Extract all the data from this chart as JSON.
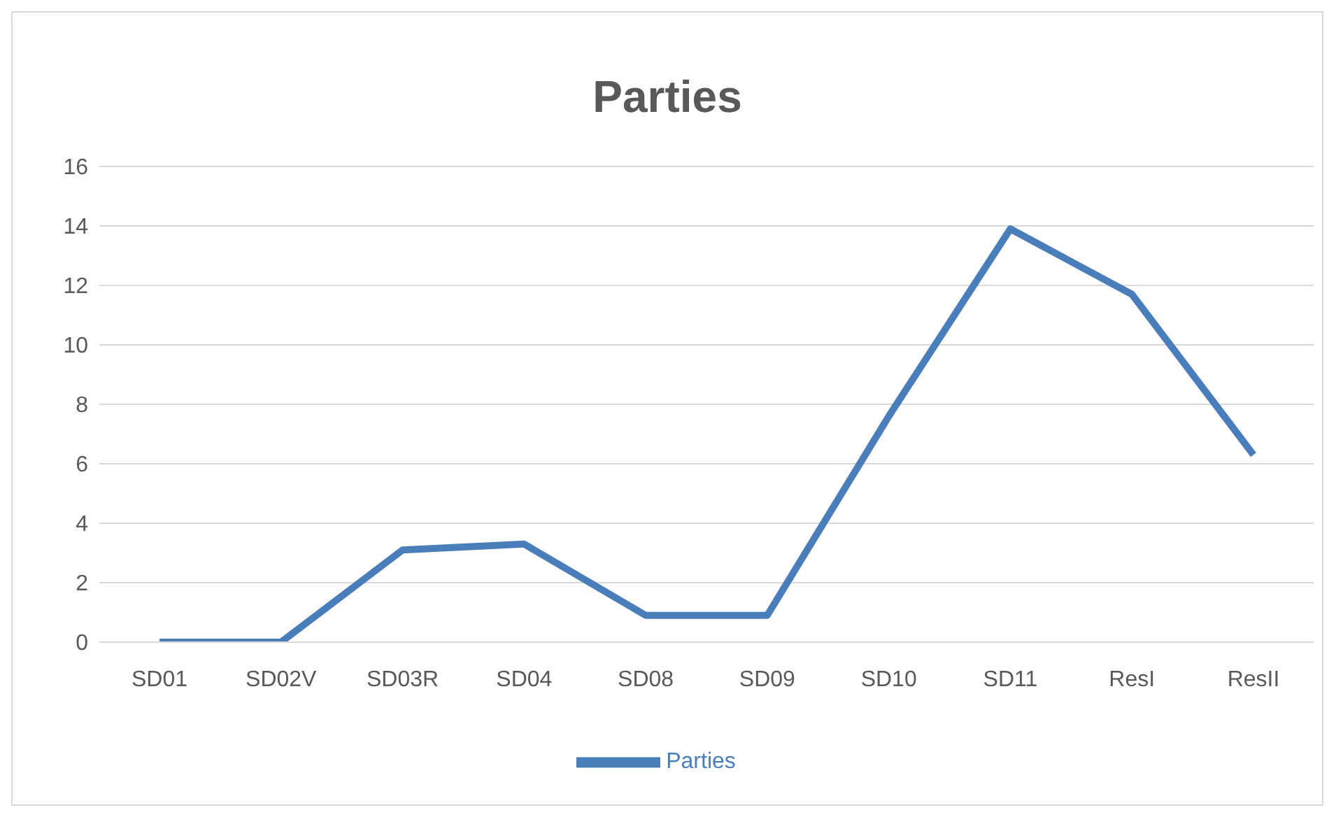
{
  "chart_data": {
    "type": "line",
    "title": "Parties",
    "categories": [
      "SD01",
      "SD02V",
      "SD03R",
      "SD04",
      "SD08",
      "SD09",
      "SD10",
      "SD11",
      "ResI",
      "ResII"
    ],
    "series": [
      {
        "name": "Parties",
        "color": "#4a7ebb",
        "values": [
          0,
          0,
          3.1,
          3.3,
          0.9,
          0.9,
          7.6,
          13.9,
          11.7,
          6.3
        ]
      }
    ],
    "ylim": [
      0,
      16
    ],
    "yticks": [
      0,
      2,
      4,
      6,
      8,
      10,
      12,
      14,
      16
    ],
    "grid": "y",
    "legend": "bottom",
    "marker": "none"
  }
}
